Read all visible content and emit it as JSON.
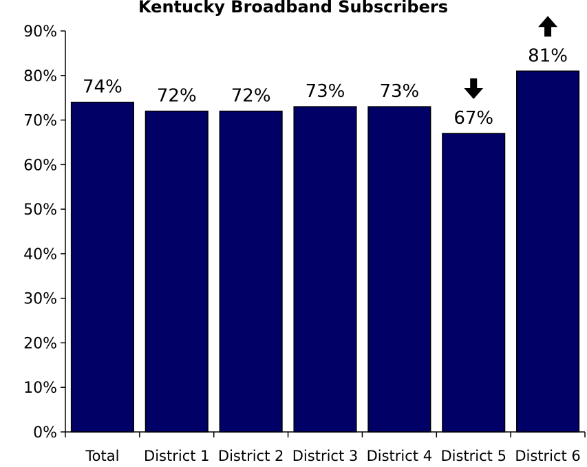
{
  "chart_data": {
    "type": "bar",
    "title": "Kentucky Broadband Subscribers",
    "xlabel": "",
    "ylabel": "",
    "categories": [
      "Total",
      "District 1",
      "District 2",
      "District 3",
      "District 4",
      "District 5",
      "District 6"
    ],
    "values": [
      74,
      72,
      72,
      73,
      73,
      67,
      81
    ],
    "value_labels": [
      "74%",
      "72%",
      "72%",
      "73%",
      "73%",
      "67%",
      "81%"
    ],
    "y_ticks": [
      "0%",
      "10%",
      "20%",
      "30%",
      "40%",
      "50%",
      "60%",
      "70%",
      "80%",
      "90%"
    ],
    "ylim": [
      0,
      90
    ],
    "grid": false,
    "legend": "none",
    "bar_color": "#000066",
    "annotations": [
      {
        "category": "District 5",
        "marker": "down-arrow-icon"
      },
      {
        "category": "District 6",
        "marker": "up-arrow-icon"
      }
    ]
  }
}
